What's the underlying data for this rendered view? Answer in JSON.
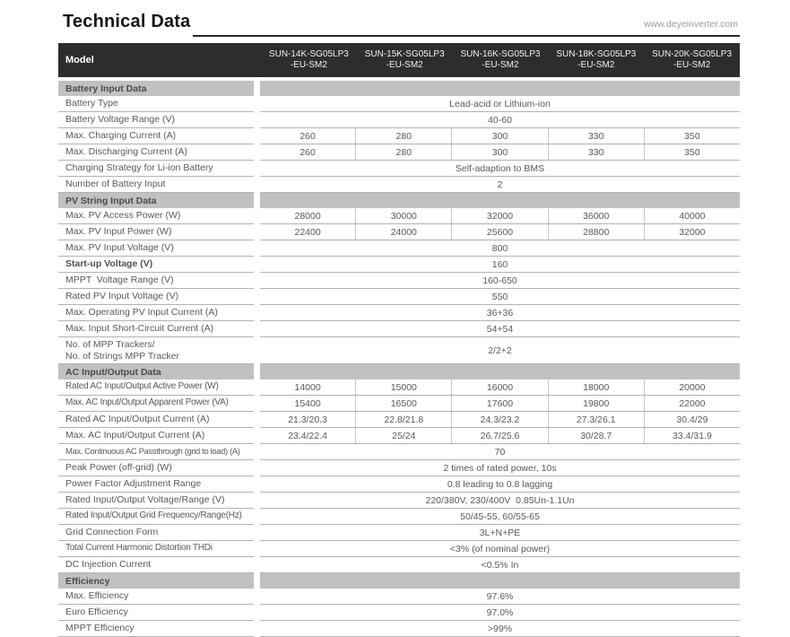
{
  "page": {
    "title": "Technical Data",
    "website": "www.deyeinverter.com"
  },
  "colors": {
    "model_header_bg": "#2d2d2d",
    "section_header_bg": "#c1c1c1",
    "rule": "#2a2a2a",
    "text": "#595959"
  },
  "table": {
    "model_label": "Model",
    "models": [
      {
        "line1": "SUN-14K-SG05LP3",
        "line2": "-EU-SM2"
      },
      {
        "line1": "SUN-15K-SG05LP3",
        "line2": "-EU-SM2"
      },
      {
        "line1": "SUN-16K-SG05LP3",
        "line2": "-EU-SM2"
      },
      {
        "line1": "SUN-18K-SG05LP3",
        "line2": "-EU-SM2"
      },
      {
        "line1": "SUN-20K-SG05LP3",
        "line2": "-EU-SM2"
      }
    ],
    "sections": [
      {
        "title": "Battery Input Data",
        "rows": [
          {
            "label": "Battery Type",
            "span": "Lead-acid or Lithium-ion"
          },
          {
            "label": "Battery Voltage Range (V)",
            "span": "40-60"
          },
          {
            "label": "Max. Charging Current (A)",
            "values": [
              "260",
              "280",
              "300",
              "330",
              "350"
            ]
          },
          {
            "label": "Max. Discharging Current (A)",
            "values": [
              "260",
              "280",
              "300",
              "330",
              "350"
            ]
          },
          {
            "label": "Charging Strategy for Li-ion Battery",
            "span": "Self-adaption to BMS"
          },
          {
            "label": "Number of Battery Input",
            "span": "2"
          }
        ]
      },
      {
        "title": "PV String Input Data",
        "rows": [
          {
            "label": "Max. PV Access Power (W)",
            "values": [
              "28000",
              "30000",
              "32000",
              "36000",
              "40000"
            ]
          },
          {
            "label": "Max. PV Input Power (W)",
            "values": [
              "22400",
              "24000",
              "25600",
              "28800",
              "32000"
            ]
          },
          {
            "label": "Max. PV Input Voltage (V)",
            "span": "800"
          },
          {
            "label": "Start-up Voltage (V)",
            "bold": true,
            "span": "160"
          },
          {
            "label": "MPPT  Voltage Range (V)",
            "span": "160-650"
          },
          {
            "label": "Rated PV Input Voltage (V)",
            "span": "550"
          },
          {
            "label": "Max. Operating PV Input Current (A)",
            "span": "36+36"
          },
          {
            "label": "Max. Input Short-Circuit Current (A)",
            "span": "54+54"
          },
          {
            "label": "No. of MPP Trackers/",
            "label2": "No. of Strings MPP Tracker",
            "tall": true,
            "span": "2/2+2"
          }
        ]
      },
      {
        "title": "AC Input/Output Data",
        "rows": [
          {
            "label": "Rated AC Input/Output Active Power (W)",
            "values": [
              "14000",
              "15000",
              "16000",
              "18000",
              "20000"
            ]
          },
          {
            "label": "Max. AC Input/Output Apparent Power (VA)",
            "values": [
              "15400",
              "16500",
              "17600",
              "19800",
              "22000"
            ]
          },
          {
            "label": "Rated AC Input/Output Current (A)",
            "values": [
              "21.3/20.3",
              "22.8/21.8",
              "24.3/23.2",
              "27.3/26.1",
              "30.4/29"
            ]
          },
          {
            "label": "Max. AC Input/Output Current (A)",
            "values": [
              "23.4/22.4",
              "25/24",
              "26.7/25.6",
              "30/28.7",
              "33.4/31.9"
            ]
          },
          {
            "label": "Max. Continuous AC Passthrough (grid to load) (A)",
            "span": "70"
          },
          {
            "label": "Peak Power (off-grid) (W)",
            "span": "2 times of rated power, 10s"
          },
          {
            "label": "Power Factor Adjustment Range",
            "span": "0.8 leading to 0.8 lagging"
          },
          {
            "label": "Rated Input/Output Voltage/Range (V)",
            "span": "220/380V, 230/400V  0.85Un-1.1Un"
          },
          {
            "label": "Rated Input/Output Grid Frequency/Range(Hz)",
            "span": "50/45-55, 60/55-65"
          },
          {
            "label": "Grid Connection Form",
            "span": "3L+N+PE"
          },
          {
            "label": "Total Current Harmonic Distortion THDi",
            "span": "<3% (of nominal power)"
          },
          {
            "label": "DC Injection Current",
            "span": "<0.5% In"
          }
        ]
      },
      {
        "title": "Efficiency",
        "rows": [
          {
            "label": "Max. Efficiency",
            "span": "97.6%"
          },
          {
            "label": "Euro Efficiency",
            "span": "97.0%"
          },
          {
            "label": "MPPT Efficiency",
            "span": ">99%"
          }
        ]
      }
    ]
  }
}
